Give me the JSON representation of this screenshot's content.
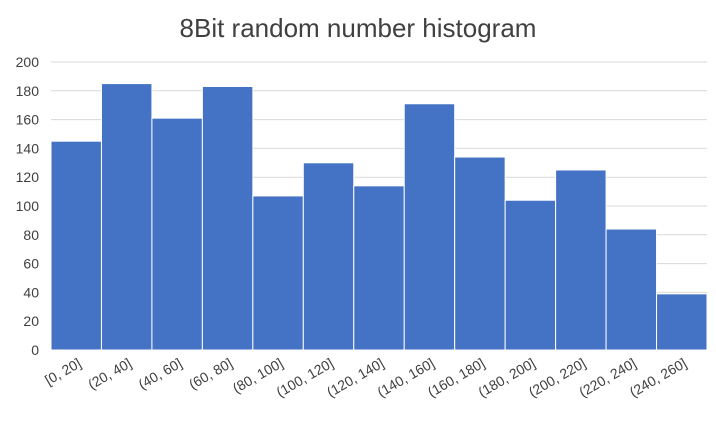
{
  "chart_data": {
    "type": "bar",
    "title": "8Bit random number histogram",
    "xlabel": "",
    "ylabel": "",
    "categories": [
      "[0, 20]",
      "(20, 40]",
      "(40, 60]",
      "(60, 80]",
      "(80, 100]",
      "(100, 120]",
      "(120, 140]",
      "(140, 160]",
      "(160, 180]",
      "(180, 200]",
      "(200, 220]",
      "(220, 240]",
      "(240, 260]"
    ],
    "values": [
      145,
      185,
      161,
      183,
      107,
      130,
      114,
      171,
      134,
      104,
      125,
      84,
      39
    ],
    "ylim": [
      0,
      200
    ],
    "yticks": [
      0,
      20,
      40,
      60,
      80,
      100,
      120,
      140,
      160,
      180,
      200
    ],
    "grid": true,
    "bar_color": "#4472C4",
    "legend": "none"
  }
}
